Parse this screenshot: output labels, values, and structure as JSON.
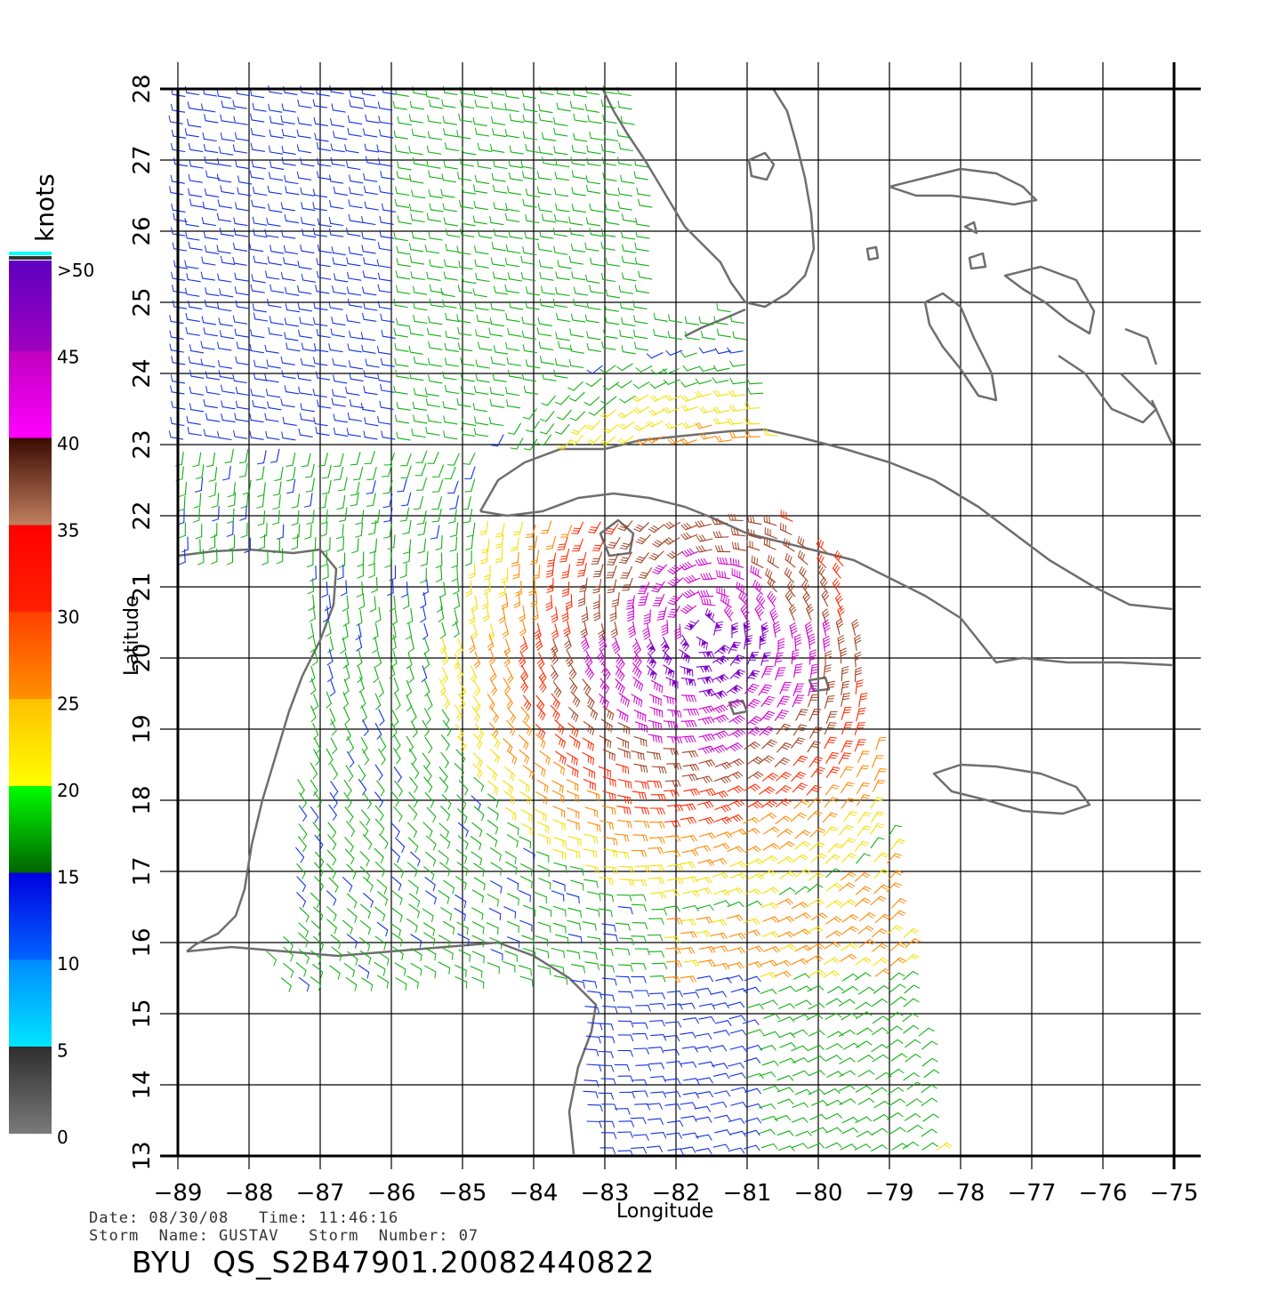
{
  "title": "",
  "axes": {
    "xlabel": "Longitude",
    "ylabel": "Latitude",
    "lon_ticks": [
      "-89",
      "-88",
      "-87",
      "-86",
      "-85",
      "-84",
      "-83",
      "-82",
      "-81",
      "-80",
      "-79",
      "-78",
      "-77",
      "-76",
      "-75"
    ],
    "lat_ticks": [
      "13",
      "14",
      "15",
      "16",
      "17",
      "18",
      "19",
      "20",
      "21",
      "22",
      "23",
      "24",
      "25",
      "26",
      "27",
      "28"
    ],
    "lon_range": [
      -89,
      -75
    ],
    "lat_range": [
      13,
      28
    ]
  },
  "colorbar": {
    "title": "knots",
    "labels": [
      ">50",
      "45",
      "40",
      "35",
      "30",
      "25",
      "20",
      "15",
      "10",
      "5",
      "0"
    ],
    "colors": {
      "0_5": [
        "#7a7a7a",
        "#2e2e2e"
      ],
      "5_10": [
        "#00e5ff",
        "#008cff"
      ],
      "10_15": [
        "#0064ff",
        "#0000e0"
      ],
      "15_20": [
        "#006400",
        "#00ff00"
      ],
      "20_25": [
        "#ffff00",
        "#ffc000"
      ],
      "25_30": [
        "#ff9000",
        "#ff4000"
      ],
      "30_35": [
        "#ff2000",
        "#ff0000"
      ],
      "35_40": [
        "#c08060",
        "#3a0a00"
      ],
      "40_45": [
        "#ff00ff",
        "#c000c0"
      ],
      "45_50": [
        "#a000c0",
        "#6000c0"
      ]
    }
  },
  "info": {
    "date_line": "Date: 08/30/08   Time: 11:46:16",
    "storm_line": "Storm  Name: GUSTAV   Storm  Number: 07",
    "file_id": "BYU  QS_S2B47901.20082440822"
  },
  "storm": {
    "center_lon": -81.6,
    "center_lat": 20.4
  }
}
